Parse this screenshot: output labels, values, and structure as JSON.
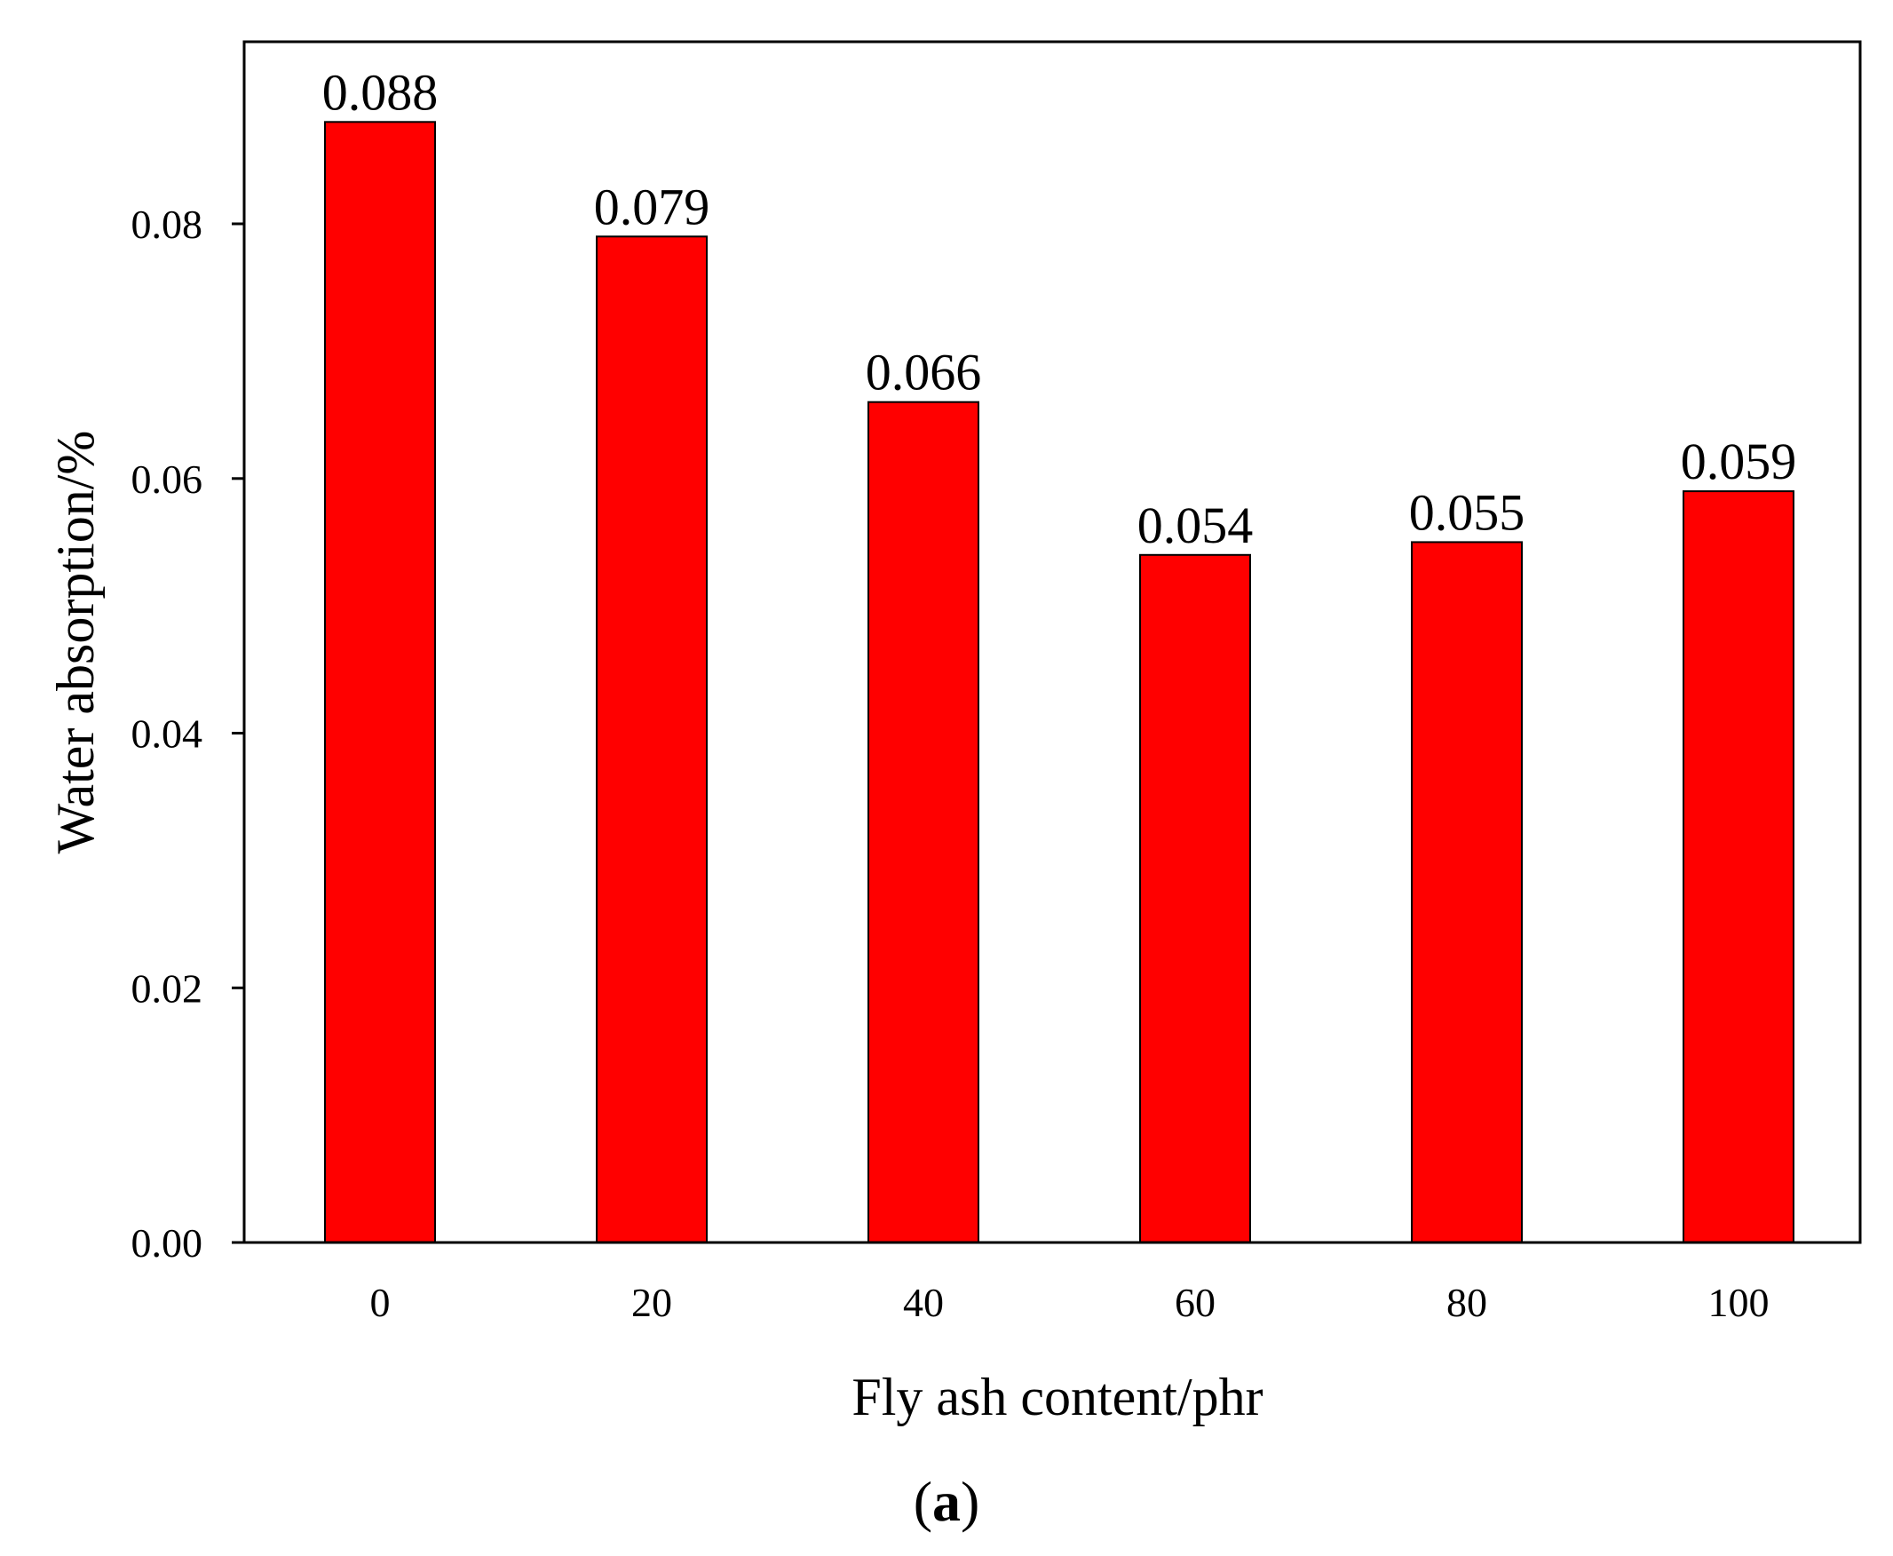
{
  "chart_data": {
    "type": "bar",
    "categories": [
      "0",
      "20",
      "40",
      "60",
      "80",
      "100"
    ],
    "values": [
      0.088,
      0.079,
      0.066,
      0.054,
      0.055,
      0.059
    ],
    "data_labels": [
      "0.088",
      "0.079",
      "0.066",
      "0.054",
      "0.055",
      "0.059"
    ],
    "xlabel": "Fly ash content/phr",
    "ylabel": "Water absorption/%",
    "ylim": [
      0,
      0.095
    ],
    "yticks": [
      0.0,
      0.02,
      0.04,
      0.06,
      0.08
    ],
    "ytick_labels": [
      "0.00",
      "0.02",
      "0.04",
      "0.06",
      "0.08"
    ],
    "grid": false,
    "legend": "none",
    "bar_color": "#ff0000",
    "bar_edge_color": "#000000"
  },
  "panel_label": {
    "open": "(",
    "letter": "a",
    "close": ")"
  }
}
